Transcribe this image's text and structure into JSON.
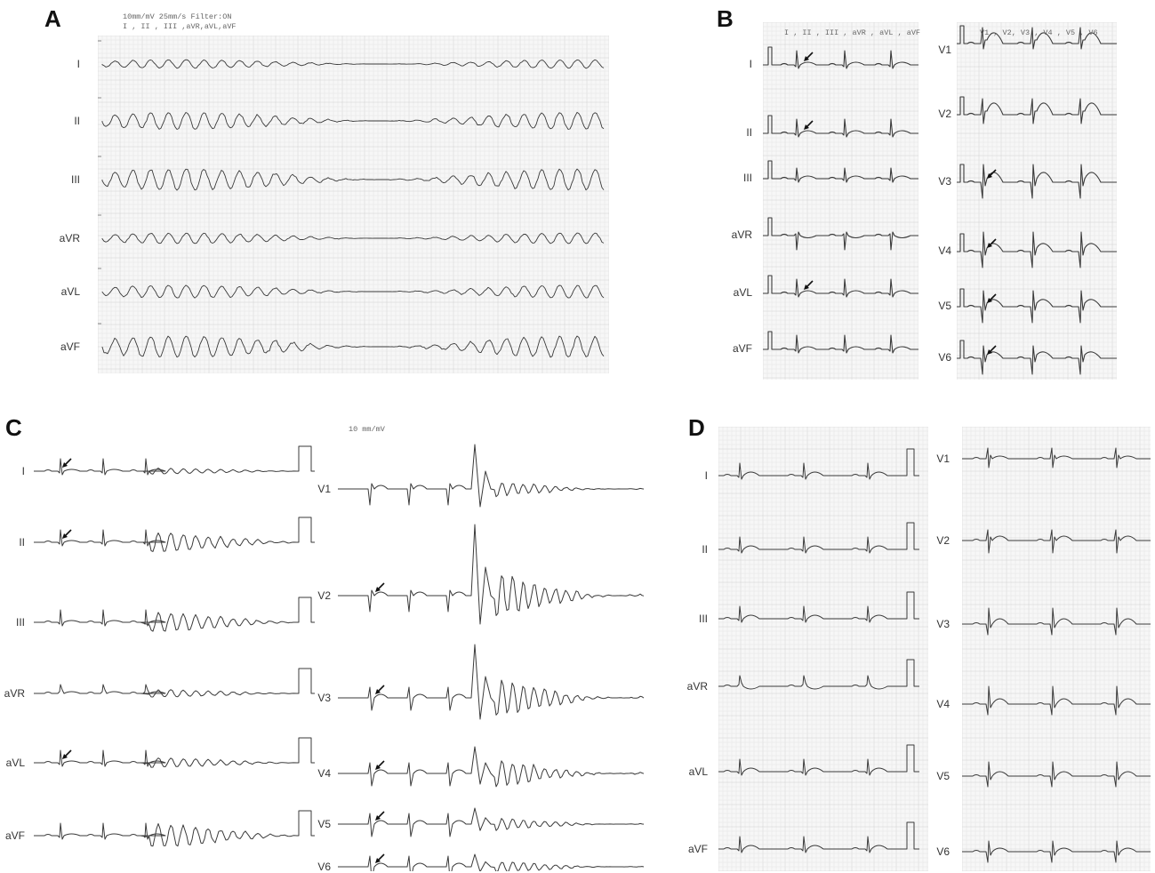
{
  "panels": {
    "A": {
      "letter": "A",
      "header_line1": "10mm/mV 25mm/s Filter:ON",
      "header_line2": "I , II , III ,aVR,aVL,aVF",
      "leads": [
        "I",
        "II",
        "III",
        "aVR",
        "aVL",
        "aVF"
      ]
    },
    "B": {
      "letter": "B",
      "left_header": "I , II , III , aVR , aVL , aVF",
      "right_header": "V1 , V2, V3 , V4 , V5 , V6",
      "left_leads": [
        "I",
        "II",
        "III",
        "aVR",
        "aVL",
        "aVF"
      ],
      "right_leads": [
        "V1",
        "V2",
        "V3",
        "V4",
        "V5",
        "V6"
      ]
    },
    "C": {
      "letter": "C",
      "calibration": "10 mm/mV",
      "left_leads": [
        "I",
        "II",
        "III",
        "aVR",
        "aVL",
        "aVF"
      ],
      "right_leads": [
        "V1",
        "V2",
        "V3",
        "V4",
        "V5",
        "V6"
      ]
    },
    "D": {
      "letter": "D",
      "left_leads": [
        "I",
        "II",
        "III",
        "aVR",
        "aVL",
        "aVF"
      ],
      "right_leads": [
        "V1",
        "V2",
        "V3",
        "V4",
        "V5",
        "V6"
      ]
    }
  },
  "colors": {
    "trace": "#3a3a3a",
    "grid_minor": "#e4e4e4",
    "grid_major": "#d0d0d0",
    "arrow": "#111111"
  }
}
